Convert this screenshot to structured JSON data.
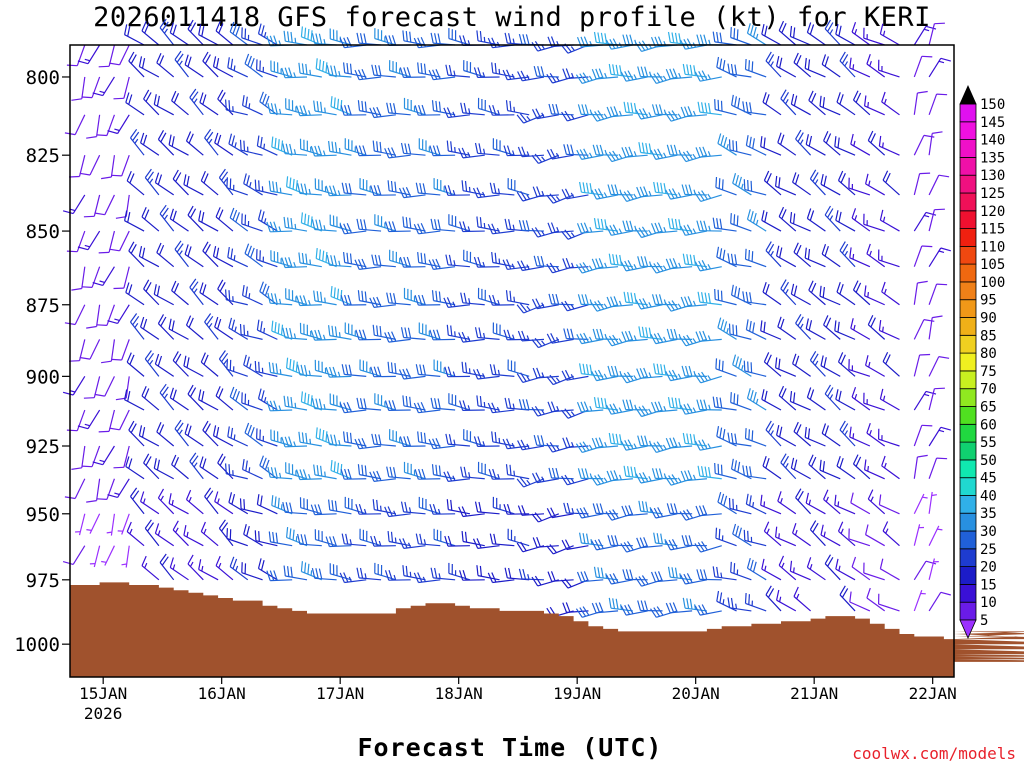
{
  "title": "2026011418 GFS forecast wind profile (kt) for KERI",
  "xlabel": "Forecast Time (UTC)",
  "credit": "coolwx.com/models",
  "chart_data": {
    "type": "wind-barb-profile",
    "station": "KERI",
    "model": "GFS",
    "init": "2026011418",
    "units": "kt",
    "ylim_hpa": [
      1013,
      790
    ],
    "y_ticks": [
      800,
      825,
      850,
      875,
      900,
      925,
      950,
      975,
      1000
    ],
    "x_ticks": [
      {
        "label": "15JAN",
        "sub": "2026"
      },
      {
        "label": "16JAN",
        "sub": ""
      },
      {
        "label": "17JAN",
        "sub": ""
      },
      {
        "label": "18JAN",
        "sub": ""
      },
      {
        "label": "19JAN",
        "sub": ""
      },
      {
        "label": "20JAN",
        "sub": ""
      },
      {
        "label": "21JAN",
        "sub": ""
      },
      {
        "label": "22JAN",
        "sub": ""
      }
    ],
    "x_day_offset_start": -0.28,
    "x_day_offset_end": 7.18,
    "step_hours": 3,
    "surface_pressure_hpa": [
      977,
      977,
      976,
      976,
      977,
      977,
      978,
      979,
      980,
      981,
      982,
      983,
      983,
      985,
      986,
      987,
      988,
      988,
      988,
      988,
      988,
      988,
      986,
      985,
      984,
      984,
      985,
      986,
      986,
      987,
      987,
      987,
      988,
      989,
      991,
      993,
      994,
      995,
      995,
      995,
      995,
      995,
      995,
      994,
      993,
      993,
      992,
      992,
      991,
      991,
      990,
      989,
      989,
      990,
      992,
      994,
      996,
      997,
      997,
      998,
      998,
      998,
      998,
      998,
      997,
      996,
      995,
      996,
      998,
      1000,
      1002,
      1004,
      1005,
      1006,
      1007,
      1007
    ],
    "colorbar": {
      "levels": [
        5,
        10,
        15,
        20,
        25,
        30,
        35,
        40,
        45,
        50,
        55,
        60,
        65,
        70,
        75,
        80,
        85,
        90,
        95,
        100,
        105,
        110,
        115,
        120,
        125,
        130,
        135,
        140,
        145,
        150
      ],
      "colors": [
        "#9b30ff",
        "#6a1ce8",
        "#3a10d6",
        "#1c1cc8",
        "#1e3cd0",
        "#2060d8",
        "#2890e0",
        "#30b0e8",
        "#20d8d0",
        "#10e8b0",
        "#10d070",
        "#20d840",
        "#50e020",
        "#90e820",
        "#c8f020",
        "#f0f020",
        "#f0d020",
        "#f0b018",
        "#f09818",
        "#f08018",
        "#f06810",
        "#f04810",
        "#f02010",
        "#f01030",
        "#f01058",
        "#f01080",
        "#f010a8",
        "#f010c8",
        "#f010e0",
        "#e010f0"
      ]
    },
    "levels_hpa": [
      790,
      800,
      812,
      825,
      838,
      850,
      862,
      875,
      887,
      900,
      912,
      925,
      937,
      950,
      962,
      975,
      987,
      1000
    ],
    "segments": [
      {
        "days": [
          -0.28,
          0.25
        ],
        "dir": 200,
        "speed": 10
      },
      {
        "days": [
          0.25,
          1.2
        ],
        "dir": 310,
        "speed": 20
      },
      {
        "days": [
          1.2,
          1.55
        ],
        "dir": 295,
        "speed": 25
      },
      {
        "days": [
          1.55,
          2.1
        ],
        "dir": 280,
        "speed": 35
      },
      {
        "days": [
          2.1,
          3.0
        ],
        "dir": 275,
        "speed": 30
      },
      {
        "days": [
          3.0,
          3.6
        ],
        "dir": 275,
        "speed": 25
      },
      {
        "days": [
          3.6,
          4.2
        ],
        "dir": 260,
        "speed": 25
      },
      {
        "days": [
          4.2,
          5.3
        ],
        "dir": 265,
        "speed": 35
      },
      {
        "days": [
          5.3,
          5.6
        ],
        "dir": 290,
        "speed": 30
      },
      {
        "days": [
          5.6,
          6.4
        ],
        "dir": 305,
        "speed": 20
      },
      {
        "days": [
          6.4,
          6.8
        ],
        "dir": 300,
        "speed": 15
      },
      {
        "days": [
          6.8,
          7.18
        ],
        "dir": 20,
        "speed": 10
      }
    ]
  }
}
